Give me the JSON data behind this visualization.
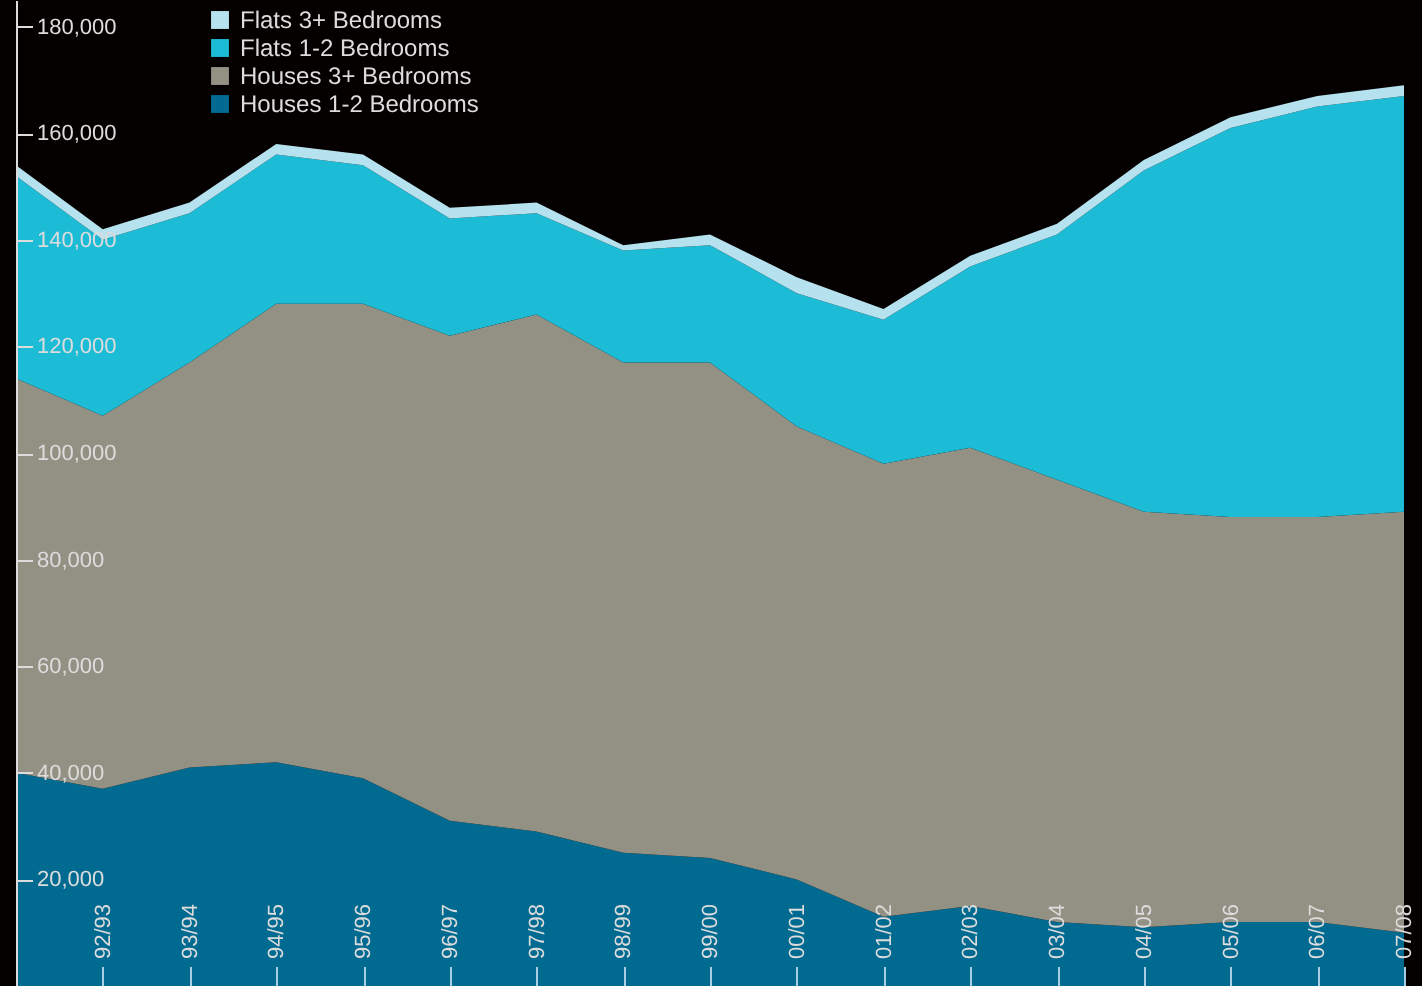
{
  "chart_data": {
    "type": "area",
    "stacked": true,
    "legend": "top left",
    "grid": false,
    "categories": [
      null,
      "92/93",
      "93/94",
      "94/95",
      "95/96",
      "96/97",
      "97/98",
      "98/99",
      "99/00",
      "00/01",
      "01/02",
      "02/03",
      "03/04",
      "04/05",
      "05/06",
      "06/07",
      "07/08"
    ],
    "ylim": [
      0,
      185000
    ],
    "yticks": [
      {
        "value": 20000,
        "label": "20,000"
      },
      {
        "value": 40000,
        "label": "40,000"
      },
      {
        "value": 60000,
        "label": "60,000"
      },
      {
        "value": 80000,
        "label": "80,000"
      },
      {
        "value": 100000,
        "label": "100,000"
      },
      {
        "value": 120000,
        "label": "120,000"
      },
      {
        "value": 140000,
        "label": "140,000"
      },
      {
        "value": 160000,
        "label": "160,000"
      },
      {
        "value": 180000,
        "label": "180,000"
      }
    ],
    "series": [
      {
        "name": "Houses 1-2 Bedrooms",
        "color": "#006a91",
        "values": [
          40000,
          37000,
          41000,
          42000,
          39000,
          31000,
          29000,
          25000,
          24000,
          20000,
          13000,
          15000,
          12000,
          11000,
          12000,
          12000,
          10000
        ]
      },
      {
        "name": "Houses 3+ Bedrooms",
        "color": "#939183",
        "values": [
          74000,
          70000,
          76000,
          86000,
          89000,
          91000,
          97000,
          92000,
          93000,
          85000,
          85000,
          86000,
          83000,
          78000,
          76000,
          76000,
          79000
        ]
      },
      {
        "name": "Flats 1-2 Bedrooms",
        "color": "#1dbcd6",
        "values": [
          38000,
          33000,
          28000,
          28000,
          26000,
          22000,
          19000,
          21000,
          22000,
          25000,
          27000,
          34000,
          46000,
          64000,
          73000,
          77000,
          78000
        ]
      },
      {
        "name": "Flats 3+ Bedrooms",
        "color": "#b5e2ee",
        "values": [
          2000,
          2000,
          2000,
          2000,
          2000,
          2000,
          2000,
          1000,
          2000,
          3000,
          2000,
          2000,
          2000,
          2000,
          2000,
          2000,
          2000
        ]
      }
    ]
  }
}
